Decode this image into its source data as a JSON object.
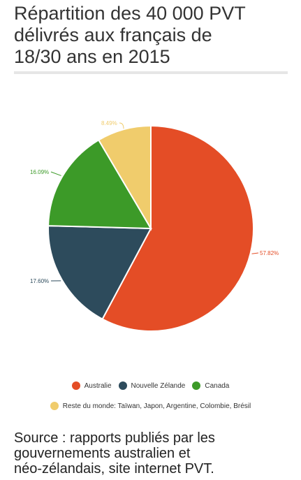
{
  "title_lines": [
    "Répartition des 40 000 PVT",
    "délivrés aux français de",
    "18/30 ans en 2015"
  ],
  "source_lines": [
    "Source : rapports publiés par les",
    "gouvernements australien et",
    "néo-zélandais, site internet PVT."
  ],
  "chart_data": {
    "type": "pie",
    "slices": [
      {
        "label": "Australie",
        "value": 57.82,
        "value_label": "57.82%",
        "color": "#e44d26"
      },
      {
        "label": "Nouvelle Zélande",
        "value": 17.6,
        "value_label": "17.60%",
        "color": "#2d4b5c"
      },
      {
        "label": "Canada",
        "value": 16.09,
        "value_label": "16.09%",
        "color": "#3c9a28"
      },
      {
        "label": "Reste du monde: Taïwan, Japon, Argentine, Colombie, Brésil",
        "value": 8.49,
        "value_label": "8.49%",
        "color": "#f0cc6c"
      }
    ],
    "start_angle": "12 o'clock",
    "direction": "clockwise",
    "legend_placement": "bottom"
  }
}
